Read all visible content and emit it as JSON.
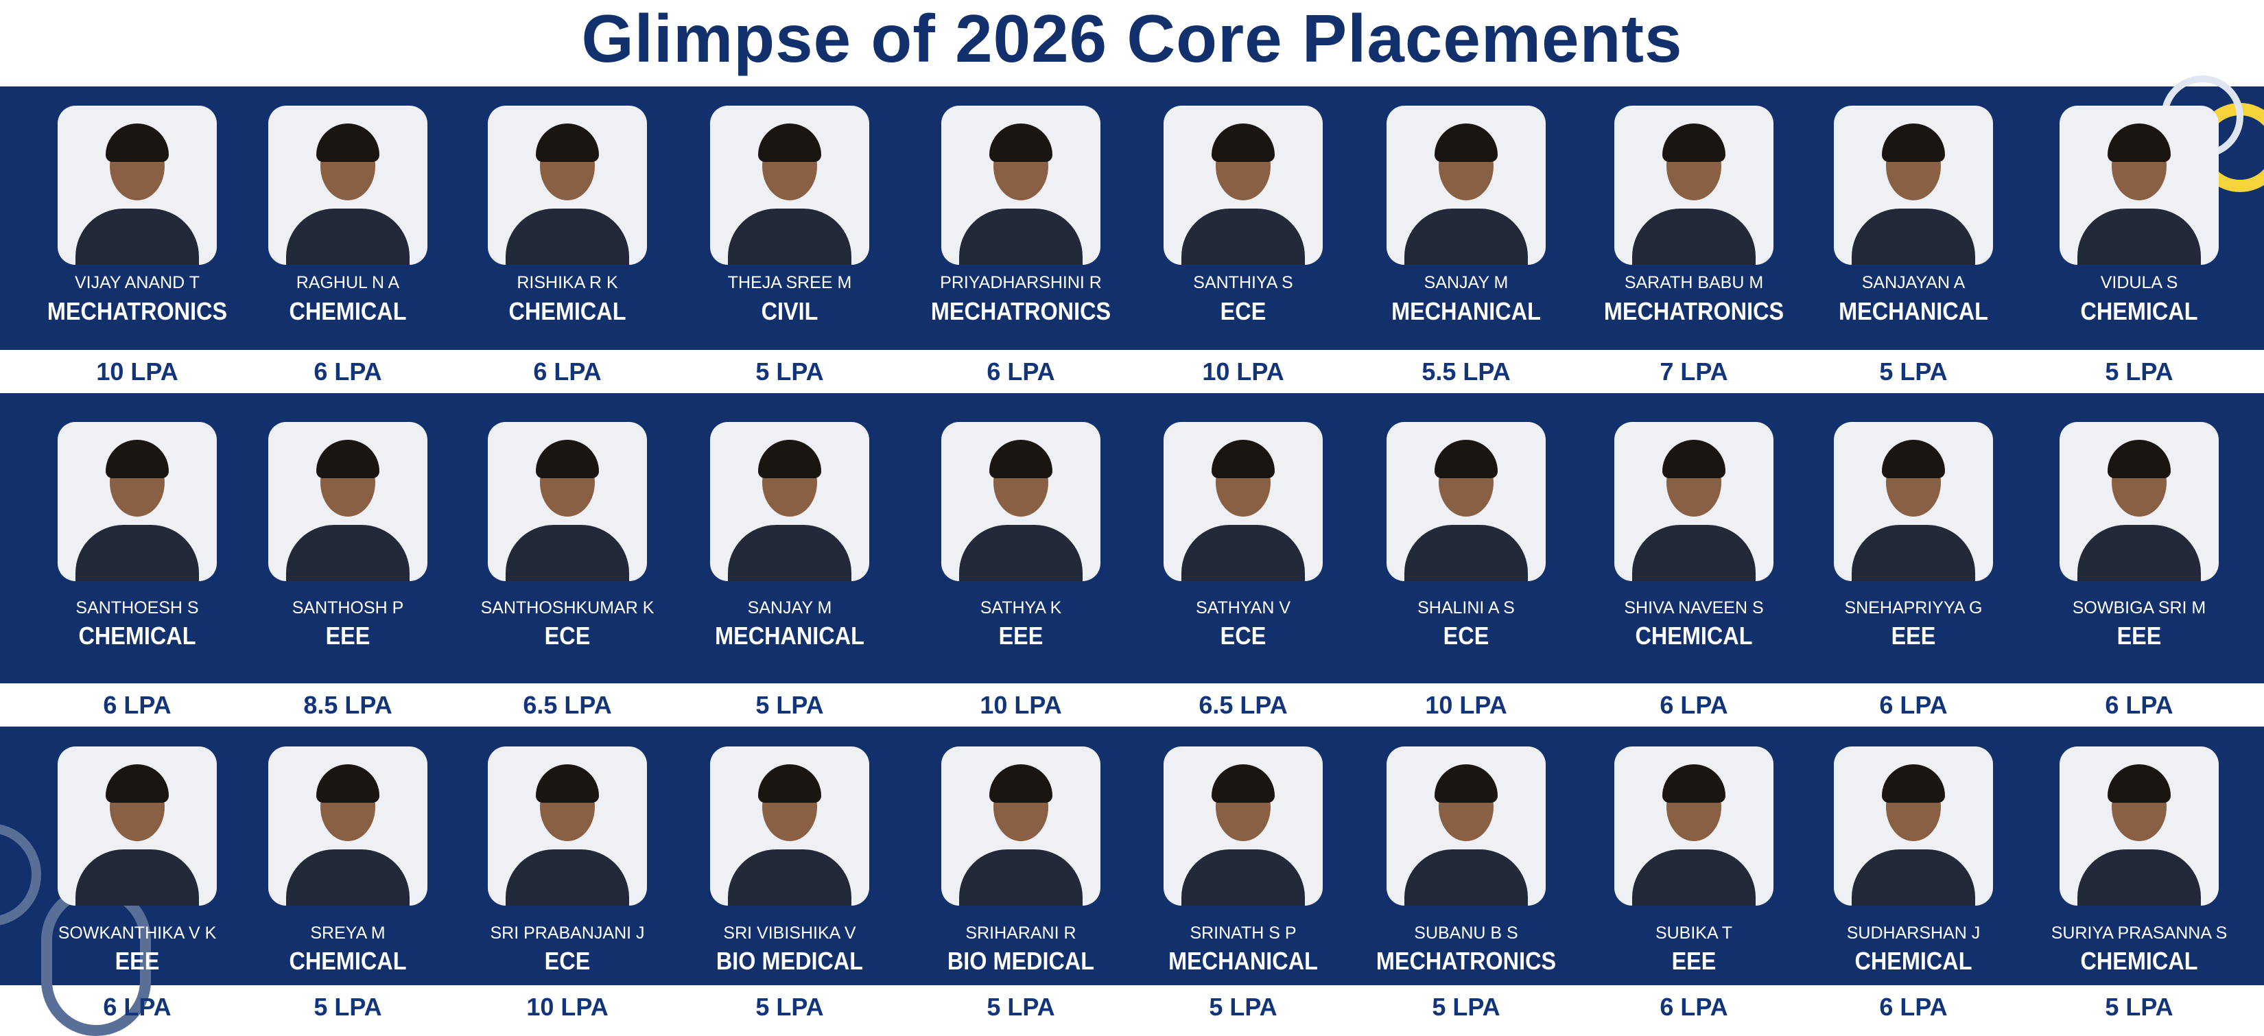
{
  "title": "Glimpse of 2026 Core Placements",
  "colors": {
    "primary": "#12306b",
    "accent": "#f5d33a",
    "background": "#ffffff"
  },
  "rows": [
    [
      {
        "name": "VIJAY ANAND T",
        "branch": "MECHATRONICS",
        "package": "10 LPA"
      },
      {
        "name": "RAGHUL N A",
        "branch": "CHEMICAL",
        "package": "6 LPA"
      },
      {
        "name": "RISHIKA R K",
        "branch": "CHEMICAL",
        "package": "6 LPA"
      },
      {
        "name": "THEJA SREE M",
        "branch": "CIVIL",
        "package": "5 LPA"
      },
      {
        "name": "PRIYADHARSHINI R",
        "branch": "MECHATRONICS",
        "package": "6 LPA"
      },
      {
        "name": "SANTHIYA S",
        "branch": "ECE",
        "package": "10 LPA"
      },
      {
        "name": "SANJAY M",
        "branch": "MECHANICAL",
        "package": "5.5 LPA"
      },
      {
        "name": "SARATH BABU M",
        "branch": "MECHATRONICS",
        "package": "7 LPA"
      },
      {
        "name": "SANJAYAN A",
        "branch": "MECHANICAL",
        "package": "5 LPA"
      },
      {
        "name": "VIDULA S",
        "branch": "CHEMICAL",
        "package": "5 LPA"
      }
    ],
    [
      {
        "name": "SANTHOESH S",
        "branch": "CHEMICAL",
        "package": "6 LPA"
      },
      {
        "name": "SANTHOSH P",
        "branch": "EEE",
        "package": "8.5 LPA"
      },
      {
        "name": "SANTHOSHKUMAR K",
        "branch": "ECE",
        "package": "6.5 LPA"
      },
      {
        "name": "SANJAY M",
        "branch": "MECHANICAL",
        "package": "5 LPA"
      },
      {
        "name": "SATHYA K",
        "branch": "EEE",
        "package": "10 LPA"
      },
      {
        "name": "SATHYAN V",
        "branch": "ECE",
        "package": "6.5 LPA"
      },
      {
        "name": "SHALINI A S",
        "branch": "ECE",
        "package": "10 LPA"
      },
      {
        "name": "SHIVA NAVEEN S",
        "branch": "CHEMICAL",
        "package": "6 LPA"
      },
      {
        "name": "SNEHAPRIYYA G",
        "branch": "EEE",
        "package": "6 LPA"
      },
      {
        "name": "SOWBIGA SRI M",
        "branch": "EEE",
        "package": "6 LPA"
      }
    ],
    [
      {
        "name": "SOWKANTHIKA V K",
        "branch": "EEE",
        "package": "6 LPA"
      },
      {
        "name": "SREYA M",
        "branch": "CHEMICAL",
        "package": "5 LPA"
      },
      {
        "name": "SRI PRABANJANI J",
        "branch": "ECE",
        "package": "10 LPA"
      },
      {
        "name": "SRI VIBISHIKA V",
        "branch": "BIO MEDICAL",
        "package": "5 LPA"
      },
      {
        "name": "SRIHARANI R",
        "branch": "BIO MEDICAL",
        "package": "5 LPA"
      },
      {
        "name": "SRINATH S P",
        "branch": "MECHANICAL",
        "package": "5 LPA"
      },
      {
        "name": "SUBANU B S",
        "branch": "MECHATRONICS",
        "package": "5 LPA"
      },
      {
        "name": "SUBIKA T",
        "branch": "EEE",
        "package": "6 LPA"
      },
      {
        "name": "SUDHARSHAN J",
        "branch": "CHEMICAL",
        "package": "6 LPA"
      },
      {
        "name": "SURIYA PRASANNA S",
        "branch": "CHEMICAL",
        "package": "5 LPA"
      }
    ]
  ]
}
